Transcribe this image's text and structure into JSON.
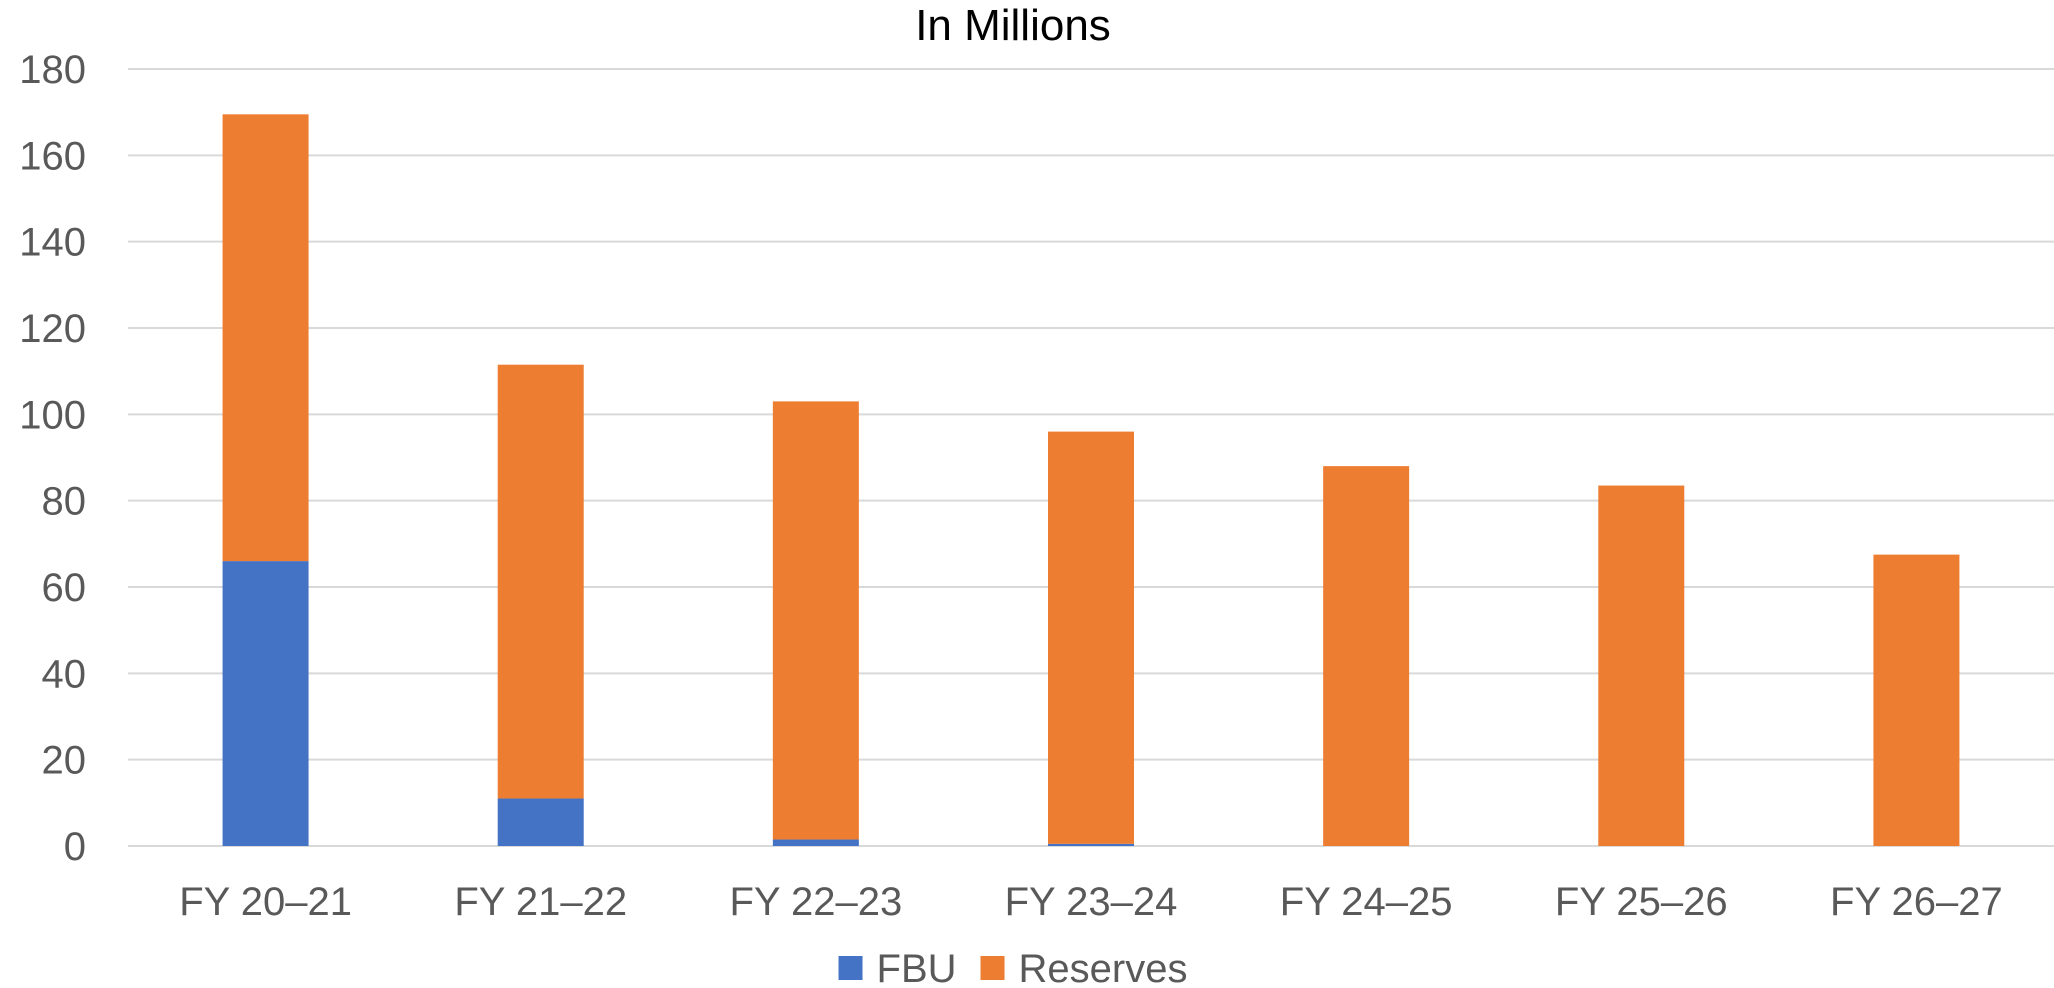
{
  "chart_data": {
    "type": "bar",
    "stacked": true,
    "title": "In Millions",
    "xlabel": "",
    "ylabel": "",
    "categories": [
      "FY 20–21",
      "FY 21–22",
      "FY 22–23",
      "FY 23–24",
      "FY 24–25",
      "FY 25–26",
      "FY 26–27"
    ],
    "series": [
      {
        "name": "FBU",
        "color": "#4472C4",
        "values": [
          66,
          11,
          1.5,
          0.5,
          0,
          0,
          0
        ]
      },
      {
        "name": "Reserves",
        "color": "#ED7D31",
        "values": [
          103.5,
          100.5,
          101.5,
          95.5,
          88,
          83.5,
          67.5
        ]
      }
    ],
    "ylim": [
      0,
      180
    ],
    "yticks": [
      0,
      20,
      40,
      60,
      80,
      100,
      120,
      140,
      160,
      180
    ],
    "grid": true,
    "legend_position": "bottom"
  }
}
